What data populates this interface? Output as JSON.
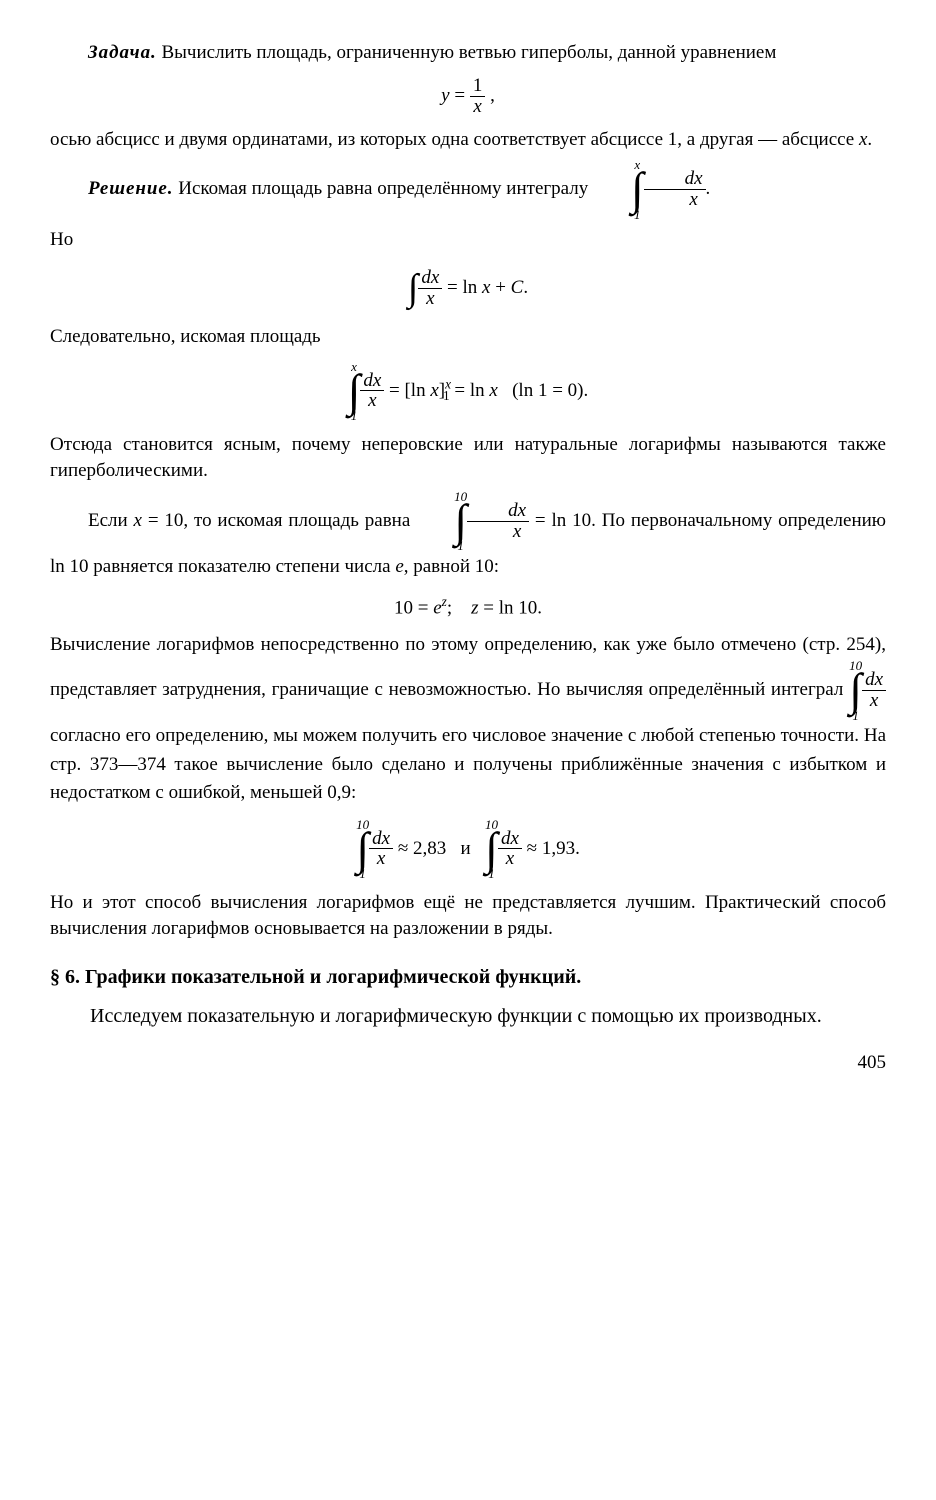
{
  "p1a": "Задача.",
  "p1b": " Вычислить площадь, ограниченную ветвью гиперболы, данной уравнением",
  "eq1_l": "y",
  "eq1_m": " = ",
  "eq1_num": "1",
  "eq1_den": "x",
  "eq1_tail": " ,",
  "p2": "осью абсцисс и двумя ординатами, из которых одна соответствует абсциссе 1, а другая — абсциссе ",
  "p2x": "x",
  "p2end": ".",
  "p3a": "Решение.",
  "p3b": " Искомая площадь равна определённому интегралу ",
  "int1_up": "x",
  "int1_dn": "1",
  "int1_num": "dx",
  "int1_den": "x",
  "p3end": ".",
  "p4": "Но",
  "eq2_num": "dx",
  "eq2_den": "x",
  "eq2_r": " = ln ",
  "eq2_x": "x",
  "eq2_r2": " + ",
  "eq2_C": "C",
  "eq2_dot": ".",
  "p5": "Следовательно, искомая площадь",
  "eq3_up": "x",
  "eq3_dn": "1",
  "eq3_num": "dx",
  "eq3_den": "x",
  "eq3_mid1": " = [ln ",
  "eq3_x1": "x",
  "eq3_mid2": "]",
  "eq3_sub": "1",
  "eq3_sup": "x",
  "eq3_mid3": " = ln ",
  "eq3_x2": "x",
  "eq3_par": "   (ln 1 = 0).",
  "p6": "Отсюда становится ясным, почему неперовские или натуральные лога­рифмы называются также гиперболическими.",
  "p7a": "Если ",
  "p7x": "x",
  "p7b": " = 10, то искомая площадь равна ",
  "int2_up": "10",
  "int2_dn": "1",
  "int2_num": "dx",
  "int2_den": "x",
  "p7c": " = ln 10. По перво­начальному определению ln 10 равняется показателю степени числа ",
  "p7e": "e",
  "p7d": ", равной 10:",
  "eq4a": "10 = ",
  "eq4e": "e",
  "eq4z": "z",
  "eq4b": ";    ",
  "eq4z2": "z",
  "eq4c": " = ln 10.",
  "p8a": "Вычисление логарифмов непосредственно по этому определению, как уже было отмечено (стр. 254), представляет затруднения, граничащие с невозможностью. Но вычисляя определённый интеграл ",
  "int3_up": "10",
  "int3_dn": "1",
  "int3_num": "dx",
  "int3_den": "x",
  "p8b": " согласно его определению, мы можем получить его числовое значение с любой степенью точности. На стр. 373—374 такое вычисление было сделано и получены приближённые значения с избытком и недостатком с ошибкой, меньшей 0,9:",
  "eq5_up": "10",
  "eq5_dn": "1",
  "eq5_num": "dx",
  "eq5_den": "x",
  "eq5_v1": " ≈ 2,83   и   ",
  "eq5_v2": " ≈ 1,93.",
  "p9": "Но и этот способ вычисления логарифмов ещё не представляется луч­шим. Практический способ вычисления логарифмов основывается на разложении в ряды.",
  "sect": "§ 6.  Графики показательной и логарифмической функций.",
  "p10": "Исследуем показательную и логарифмическую функции с по­мощью их производных.",
  "pagenum": "405"
}
